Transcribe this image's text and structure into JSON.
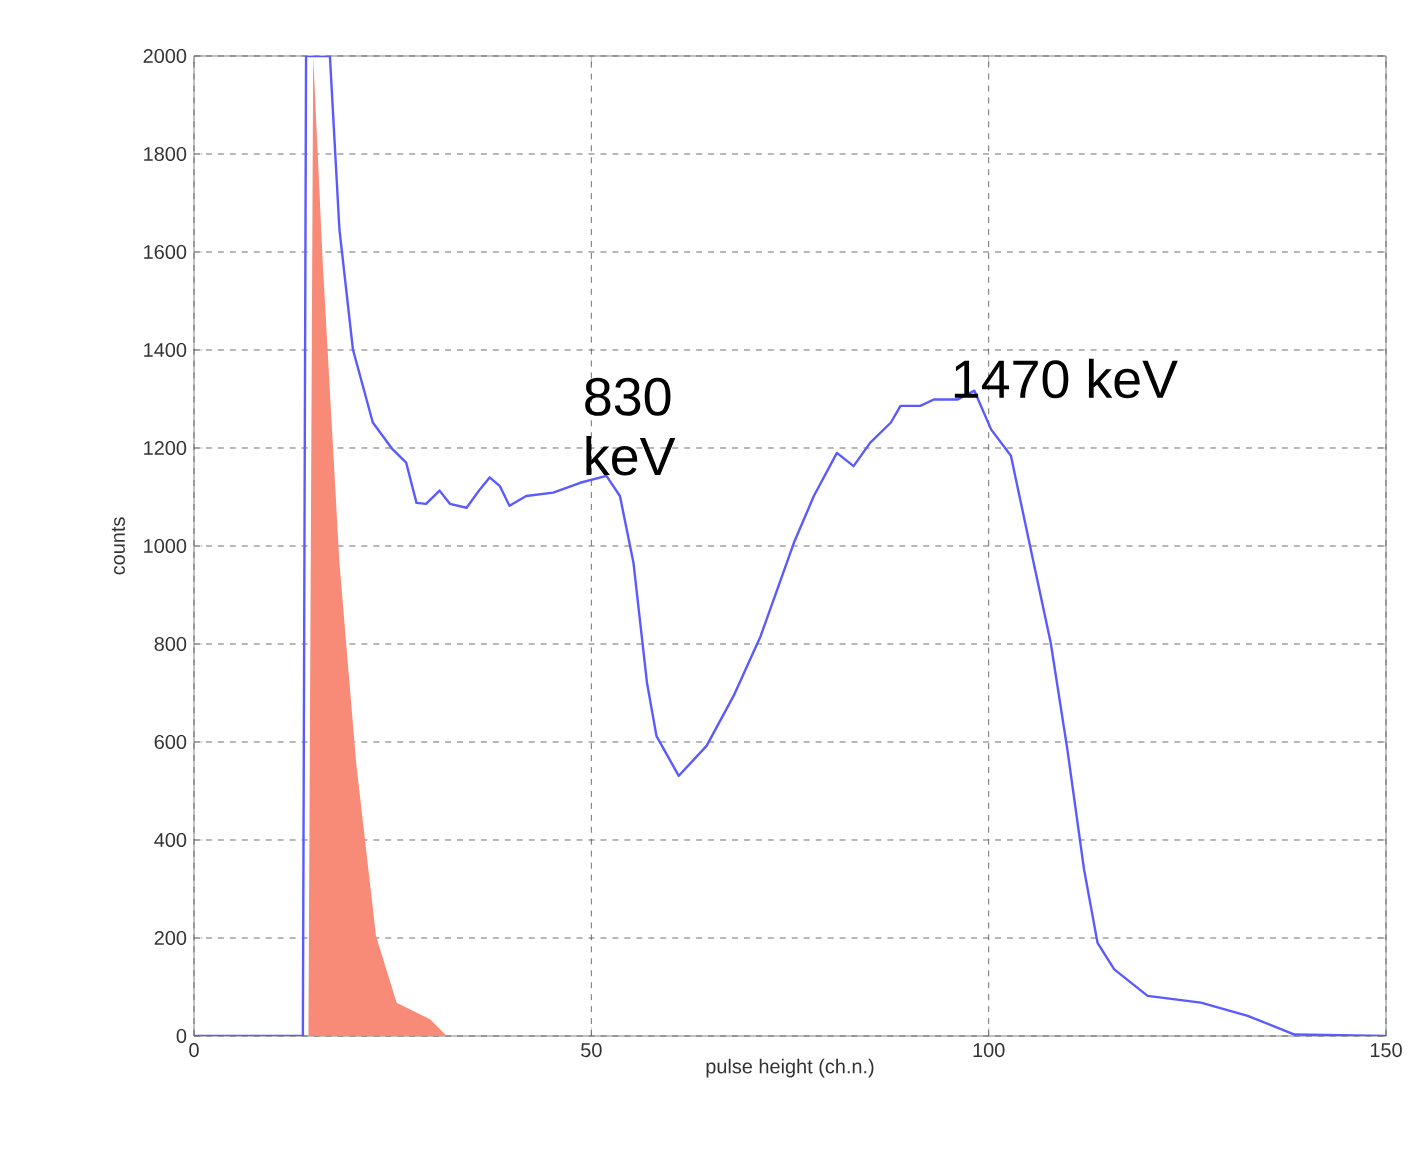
{
  "chart_data": {
    "type": "line",
    "xlabel": "pulse height (ch.n.)",
    "ylabel": "counts",
    "xlim": [
      0,
      150
    ],
    "ylim": [
      0,
      2000
    ],
    "xticks": [
      0,
      50,
      100,
      150
    ],
    "yticks": [
      0,
      200,
      400,
      600,
      800,
      1000,
      1200,
      1400,
      1600,
      1800,
      2000
    ],
    "grid": true,
    "series": [
      {
        "type": "area",
        "color": "#f88a78",
        "x": [
          14.4,
          15.0,
          16.2,
          18.3,
          20.4,
          22.9,
          25.5,
          29.7,
          31.8
        ],
        "values": [
          0,
          2000,
          1578,
          966,
          558,
          204,
          68,
          34,
          0
        ]
      },
      {
        "color": "#5a5aff",
        "x": [
          0,
          13.7,
          14.1,
          17.1,
          18.3,
          20.0,
          22.5,
          25.0,
          26.7,
          28.0,
          29.2,
          30.9,
          32.2,
          34.3,
          36.0,
          37.2,
          38.5,
          39.7,
          41.8,
          45.2,
          48.6,
          51.9,
          53.6,
          55.3,
          57.0,
          58.2,
          61.0,
          64.5,
          67.9,
          71.3,
          75.5,
          78.0,
          80.9,
          83.0,
          85.1,
          87.7,
          88.9,
          91.4,
          93.1,
          96.1,
          98.2,
          100.3,
          102.8,
          105.3,
          107.8,
          109.9,
          112.0,
          113.7,
          115.8,
          120.0,
          126.7,
          132.6,
          138.5,
          150
        ],
        "values": [
          0,
          0,
          2000,
          2000,
          1646,
          1401,
          1252,
          1197,
          1170,
          1088,
          1086,
          1113,
          1086,
          1078,
          1116,
          1140,
          1122,
          1082,
          1102,
          1109,
          1129,
          1143,
          1102,
          966,
          721,
          612,
          531,
          592,
          694,
          816,
          1007,
          1102,
          1190,
          1163,
          1211,
          1252,
          1286,
          1286,
          1299,
          1299,
          1317,
          1238,
          1184,
          993,
          803,
          585,
          340,
          190,
          136,
          82,
          68,
          41,
          3,
          0
        ]
      }
    ],
    "annotations": [
      {
        "text": "830 keV",
        "x": 51.9,
        "y": 1143
      },
      {
        "text": "1470 keV",
        "x": 98.2,
        "y": 1317
      }
    ]
  }
}
